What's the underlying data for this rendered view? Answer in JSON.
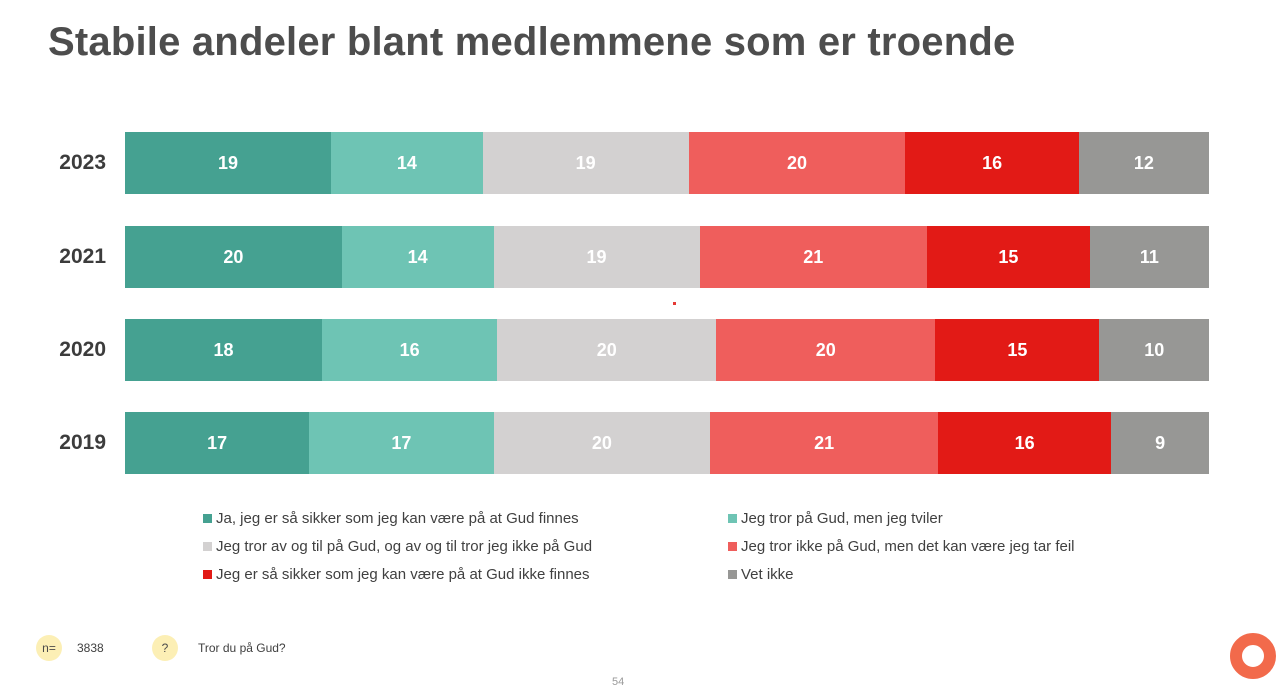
{
  "title": "Stabile andeler blant medlemmene som er troende",
  "chart_data": {
    "type": "bar",
    "orientation": "horizontal",
    "stacked": true,
    "normalized": true,
    "categories": [
      "2023",
      "2021",
      "2020",
      "2019"
    ],
    "series": [
      {
        "name": "Ja, jeg er så sikker som jeg kan være på at Gud finnes",
        "color": "#45a191",
        "values": [
          19,
          20,
          18,
          17
        ]
      },
      {
        "name": "Jeg tror på Gud, men jeg tviler",
        "color": "#6ec4b4",
        "values": [
          14,
          14,
          16,
          17
        ]
      },
      {
        "name": "Jeg tror av og til på Gud, og av og til tror jeg ikke på Gud",
        "color": "#d3d1d1",
        "values": [
          19,
          19,
          20,
          20
        ]
      },
      {
        "name": "Jeg tror ikke på Gud, men det kan være jeg tar feil",
        "color": "#ef5e5c",
        "values": [
          20,
          21,
          20,
          21
        ]
      },
      {
        "name": "Jeg er så sikker som jeg kan være på at Gud ikke finnes",
        "color": "#e21a16",
        "values": [
          16,
          15,
          15,
          16
        ]
      },
      {
        "name": "Vet ikke",
        "color": "#979795",
        "values": [
          12,
          11,
          10,
          9
        ]
      }
    ],
    "legend_position": "bottom"
  },
  "footer": {
    "n_label": "n=",
    "n_value": "3838",
    "question_label": "?",
    "question": "Tror du på Gud?",
    "page_number": "54"
  },
  "colors": {
    "logo": "#f26a4b"
  }
}
